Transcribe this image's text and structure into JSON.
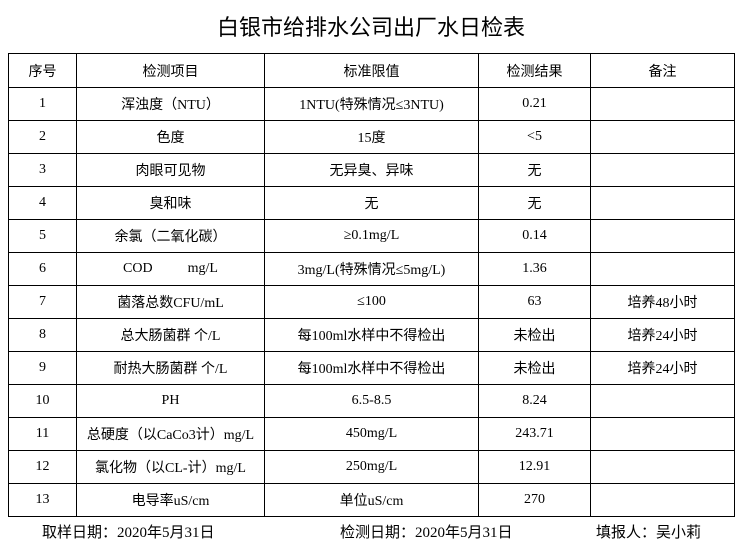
{
  "header": {
    "title": "白银市给排水公司出厂水日检表"
  },
  "table": {
    "columns": [
      "序号",
      "检测项目",
      "标准限值",
      "检测结果",
      "备注"
    ],
    "rows": [
      [
        "1",
        "浑浊度（NTU）",
        "1NTU(特殊情况≤3NTU)",
        "0.21",
        null
      ],
      [
        "2",
        "色度",
        "15度",
        "<5",
        null
      ],
      [
        "3",
        "肉眼可见物",
        "无异臭、异味",
        "无",
        null
      ],
      [
        "4",
        "臭和味",
        "无",
        "无",
        null
      ],
      [
        "5",
        "余氯（二氧化碳）",
        "≥0.1mg/L",
        "0.14",
        null
      ],
      [
        "6",
        "COD          mg/L",
        "3mg/L(特殊情况≤5mg/L)",
        "1.36",
        null
      ],
      [
        "7",
        "菌落总数CFU/mL",
        "≤100",
        "63",
        "培养48小时"
      ],
      [
        "8",
        "总大肠菌群 个/L",
        "每100ml水样中不得检出",
        "未检出",
        "培养24小时"
      ],
      [
        "9",
        "耐热大肠菌群 个/L",
        "每100ml水样中不得检出",
        "未检出",
        "培养24小时"
      ],
      [
        "10",
        "PH",
        "6.5-8.5",
        "8.24",
        null
      ],
      [
        "11",
        "总硬度（以CaCo3计）mg/L",
        "450mg/L",
        "243.71",
        null
      ],
      [
        "12",
        "氯化物（以CL-计）mg/L",
        "250mg/L",
        "12.91",
        null
      ],
      [
        "13",
        "电导率uS/cm",
        "单位uS/cm",
        "270",
        null
      ]
    ]
  },
  "footer": {
    "sampling_date": "取样日期：2020年5月31日",
    "test_date": "检测日期：2020年5月31日",
    "reporter": "填报人：吴小莉"
  }
}
